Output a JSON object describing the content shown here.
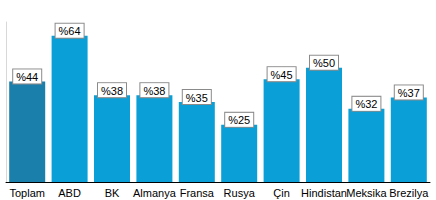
{
  "chart_data": {
    "type": "bar",
    "categories": [
      "Toplam",
      "ABD",
      "BK",
      "Almanya",
      "Fransa",
      "Rusya",
      "Çin",
      "Hindistan",
      "Meksika",
      "Brezilya"
    ],
    "values": [
      44,
      64,
      38,
      38,
      35,
      25,
      45,
      50,
      32,
      37
    ],
    "value_labels": [
      "%44",
      "%64",
      "%38",
      "%38",
      "%35",
      "%25",
      "%45",
      "%50",
      "%32",
      "%37"
    ],
    "colors": [
      "#1b7fac",
      "#0a9fd6",
      "#0a9fd6",
      "#0a9fd6",
      "#0a9fd6",
      "#0a9fd6",
      "#0a9fd6",
      "#0a9fd6",
      "#0a9fd6",
      "#0a9fd6"
    ],
    "ylim": [
      0,
      70
    ],
    "yticks": [],
    "grid": false,
    "data_labels": true,
    "tick_labels": "x"
  }
}
